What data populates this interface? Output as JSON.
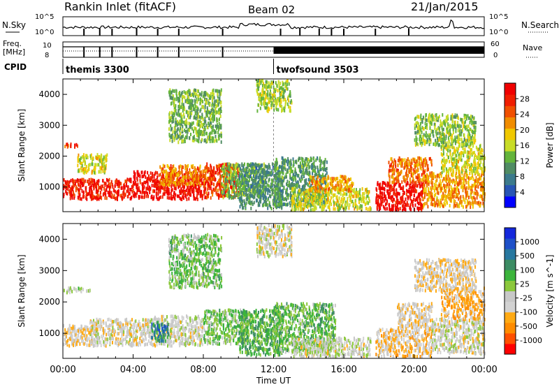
{
  "header": {
    "station": "Rankin Inlet (fitACF)",
    "beam": "Beam 02",
    "date": "21/Jan/2015"
  },
  "side_labels": {
    "nsky": "N.Sky",
    "nsearch": "N.Search",
    "freq": "Freq.",
    "mhz": "[MHz]",
    "nave": "Nave",
    "cpid": "CPID"
  },
  "ticks": {
    "nsky_top": "10^5",
    "nsky_bot": "10^0",
    "freq_top": "10",
    "freq_bot": "8",
    "nave_top": "60",
    "nave_bot": "0"
  },
  "cpid": [
    {
      "label": "themis 3300",
      "start_hour": 0
    },
    {
      "label": "twofsound 3503",
      "start_hour": 12
    }
  ],
  "colors": {
    "power_scale": [
      "#0000ff",
      "#2855b4",
      "#3c7a8c",
      "#508c64",
      "#64b43c",
      "#c8dc28",
      "#f0c800",
      "#f08c00",
      "#f05000",
      "#f01e00",
      "#f00000"
    ],
    "velocity_scale": [
      "#ff0000",
      "#ff5000",
      "#ff8c00",
      "#ffaa14",
      "#d2d2d2",
      "#c8c8c8",
      "#8cc83c",
      "#3cb43c",
      "#3c8c64",
      "#2878a0",
      "#1e50c8",
      "#1428dc"
    ]
  },
  "chart_data": [
    {
      "type": "heatmap",
      "title": "Power",
      "quantity": "Power",
      "colorbar_label": "Power [dB]",
      "colorbar_ticks": [
        "4",
        "8",
        "12",
        "16",
        "20",
        "24",
        "28"
      ],
      "colorbar_range": [
        0,
        30
      ],
      "ylabel": "Slant Range [km]",
      "yticks": [
        "1000",
        "2000",
        "3000",
        "4000"
      ],
      "ylim": [
        200,
        4500
      ],
      "xlim": [
        0,
        24
      ],
      "xlabel": "Time UT",
      "xticks": [
        "00:00",
        "04:00",
        "08:00",
        "12:00",
        "16:00",
        "20:00",
        "00:00"
      ],
      "bands": [
        {
          "t0": 0.0,
          "t1": 1.6,
          "r0": 650,
          "r1": 1300,
          "value": 27
        },
        {
          "t0": 0.0,
          "t1": 1.0,
          "r0": 2350,
          "r1": 2450,
          "value": 25
        },
        {
          "t0": 0.8,
          "t1": 2.5,
          "r0": 1500,
          "r1": 2100,
          "value": 16
        },
        {
          "t0": 1.5,
          "t1": 4.0,
          "r0": 650,
          "r1": 1300,
          "value": 27
        },
        {
          "t0": 4.0,
          "t1": 8.0,
          "r0": 650,
          "r1": 1550,
          "value": 28
        },
        {
          "t0": 5.5,
          "t1": 8.5,
          "r0": 1100,
          "r1": 1750,
          "value": 21
        },
        {
          "t0": 8.0,
          "t1": 10.0,
          "r0": 700,
          "r1": 1800,
          "value": 25
        },
        {
          "t0": 9.0,
          "t1": 11.5,
          "r0": 700,
          "r1": 1800,
          "value": 12
        },
        {
          "t0": 10.0,
          "t1": 12.5,
          "r0": 350,
          "r1": 1800,
          "value": 9
        },
        {
          "t0": 12.0,
          "t1": 15.0,
          "r0": 450,
          "r1": 2000,
          "value": 10
        },
        {
          "t0": 13.0,
          "t1": 17.5,
          "r0": 300,
          "r1": 1000,
          "value": 16
        },
        {
          "t0": 14.0,
          "t1": 16.5,
          "r0": 900,
          "r1": 1400,
          "value": 20
        },
        {
          "t0": 17.8,
          "t1": 20.5,
          "r0": 300,
          "r1": 1200,
          "value": 28
        },
        {
          "t0": 18.5,
          "t1": 21.0,
          "r0": 1200,
          "r1": 2000,
          "value": 22
        },
        {
          "t0": 20.5,
          "t1": 24.0,
          "r0": 400,
          "r1": 1500,
          "value": 20
        },
        {
          "t0": 21.5,
          "t1": 24.0,
          "r0": 1500,
          "r1": 2400,
          "value": 16
        },
        {
          "t0": 6.0,
          "t1": 9.0,
          "r0": 2500,
          "r1": 4200,
          "value": 12
        },
        {
          "t0": 11.0,
          "t1": 13.0,
          "r0": 3500,
          "r1": 4500,
          "value": 14
        },
        {
          "t0": 20.0,
          "t1": 23.5,
          "r0": 2400,
          "r1": 3400,
          "value": 13
        }
      ]
    },
    {
      "type": "heatmap",
      "title": "Velocity",
      "quantity": "Velocity",
      "colorbar_label": "Velocity [m s^-1]",
      "colorbar_ticks": [
        "-1000",
        "-500",
        "-100",
        "-25",
        "25",
        "100",
        "500",
        "1000"
      ],
      "colorbar_range": [
        -1200,
        1200
      ],
      "ylabel": "Slant Range [km]",
      "yticks": [
        "1000",
        "2000",
        "3000",
        "4000"
      ],
      "ylim": [
        200,
        4500
      ],
      "xlim": [
        0,
        24
      ],
      "xlabel": "Time UT",
      "xticks": [
        "00:00",
        "04:00",
        "08:00",
        "12:00",
        "16:00",
        "20:00",
        "00:00"
      ],
      "bands": [
        {
          "t0": 0.0,
          "t1": 2.0,
          "r0": 650,
          "r1": 1300,
          "value": -300
        },
        {
          "t0": 0.0,
          "t1": 1.5,
          "r0": 2350,
          "r1": 2500,
          "value": 0
        },
        {
          "t0": 1.5,
          "t1": 5.0,
          "r0": 650,
          "r1": 1500,
          "value": -200
        },
        {
          "t0": 5.0,
          "t1": 8.0,
          "r0": 650,
          "r1": 1600,
          "value": -150
        },
        {
          "t0": 5.0,
          "t1": 6.0,
          "r0": 800,
          "r1": 1400,
          "value": 600
        },
        {
          "t0": 8.0,
          "t1": 10.5,
          "r0": 700,
          "r1": 1800,
          "value": 150
        },
        {
          "t0": 10.0,
          "t1": 12.5,
          "r0": 350,
          "r1": 1800,
          "value": 300
        },
        {
          "t0": 12.0,
          "t1": 15.5,
          "r0": 450,
          "r1": 2000,
          "value": 200
        },
        {
          "t0": 13.0,
          "t1": 17.5,
          "r0": 300,
          "r1": 900,
          "value": -150
        },
        {
          "t0": 17.8,
          "t1": 21.0,
          "r0": 300,
          "r1": 1200,
          "value": -400
        },
        {
          "t0": 19.0,
          "t1": 21.0,
          "r0": 1200,
          "r1": 2000,
          "value": -300
        },
        {
          "t0": 21.0,
          "t1": 24.0,
          "r0": 400,
          "r1": 1500,
          "value": -200
        },
        {
          "t0": 21.5,
          "t1": 24.0,
          "r0": 1500,
          "r1": 2500,
          "value": -500
        },
        {
          "t0": 6.0,
          "t1": 9.0,
          "r0": 2500,
          "r1": 4200,
          "value": 150
        },
        {
          "t0": 11.0,
          "t1": 13.0,
          "r0": 3500,
          "r1": 4500,
          "value": -200
        },
        {
          "t0": 20.0,
          "t1": 23.5,
          "r0": 2400,
          "r1": 3400,
          "value": -300
        }
      ]
    }
  ]
}
